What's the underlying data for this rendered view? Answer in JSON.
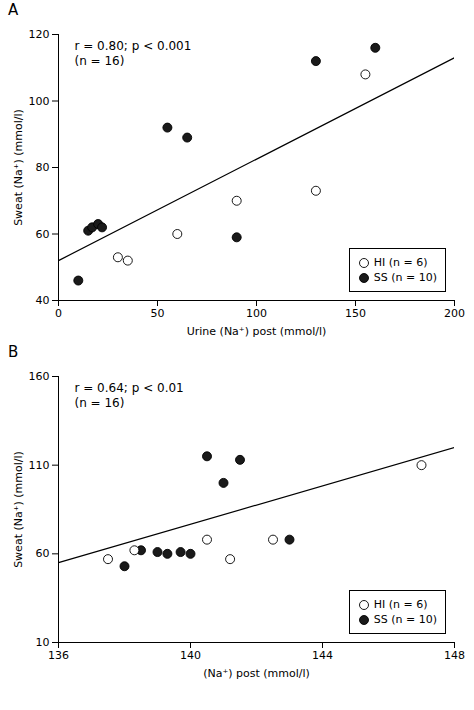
{
  "chart_data": [
    {
      "type": "scatter",
      "title": "A",
      "annotations": [
        "r = 0.80; p < 0.001\n(n = 16)"
      ],
      "x_label": "Urine (Na⁺) post (mmol/l)",
      "y_label": "Sweat (Na⁺) (mmol/l)",
      "xlim": [
        0,
        200
      ],
      "ylim": [
        40,
        120
      ],
      "xticks": [
        0,
        50,
        100,
        150,
        200
      ],
      "yticks": [
        40,
        60,
        80,
        100,
        120
      ],
      "legend": "lower right",
      "series": [
        {
          "type": "line",
          "color": "black",
          "line_style": "solid",
          "x": [
            0,
            200
          ],
          "values": [
            52,
            113
          ]
        },
        {
          "name": "HI (n = 6)",
          "color": "white",
          "marker": "circle",
          "x": [
            30,
            35,
            60,
            90,
            130,
            155
          ],
          "values": [
            53,
            52,
            60,
            70,
            73,
            108
          ]
        },
        {
          "name": "SS (n = 10)",
          "color": "#1a1a1a",
          "marker": "circle",
          "x": [
            10,
            15,
            17,
            20,
            22,
            55,
            65,
            90,
            130,
            160
          ],
          "values": [
            46,
            61,
            62,
            63,
            62,
            92,
            89,
            59,
            112,
            116
          ]
        }
      ]
    },
    {
      "type": "scatter",
      "title": "B",
      "annotations": [
        "r = 0.64; p < 0.01\n(n = 16)"
      ],
      "x_label": "(Na⁺) post (mmol/l)",
      "y_label": "Sweat (Na⁺) (mmol/l)",
      "xlim": [
        136,
        148
      ],
      "ylim": [
        10,
        160
      ],
      "xticks": [
        136,
        140,
        144,
        148
      ],
      "yticks": [
        10,
        60,
        110,
        160
      ],
      "legend": "lower right",
      "series": [
        {
          "type": "line",
          "color": "black",
          "line_style": "solid",
          "x": [
            136,
            148
          ],
          "values": [
            55,
            120
          ]
        },
        {
          "name": "HI (n = 6)",
          "color": "white",
          "marker": "circle",
          "x": [
            137.5,
            138.3,
            140.5,
            141.2,
            142.5,
            147.0
          ],
          "values": [
            57,
            62,
            68,
            57,
            68,
            110
          ]
        },
        {
          "name": "SS (n = 10)",
          "color": "#1a1a1a",
          "marker": "circle",
          "x": [
            138.0,
            138.5,
            139.0,
            139.3,
            139.7,
            140.0,
            140.5,
            141.0,
            141.5,
            143.0
          ],
          "values": [
            53,
            62,
            61,
            60,
            61,
            60,
            115,
            100,
            113,
            68
          ]
        }
      ]
    }
  ]
}
